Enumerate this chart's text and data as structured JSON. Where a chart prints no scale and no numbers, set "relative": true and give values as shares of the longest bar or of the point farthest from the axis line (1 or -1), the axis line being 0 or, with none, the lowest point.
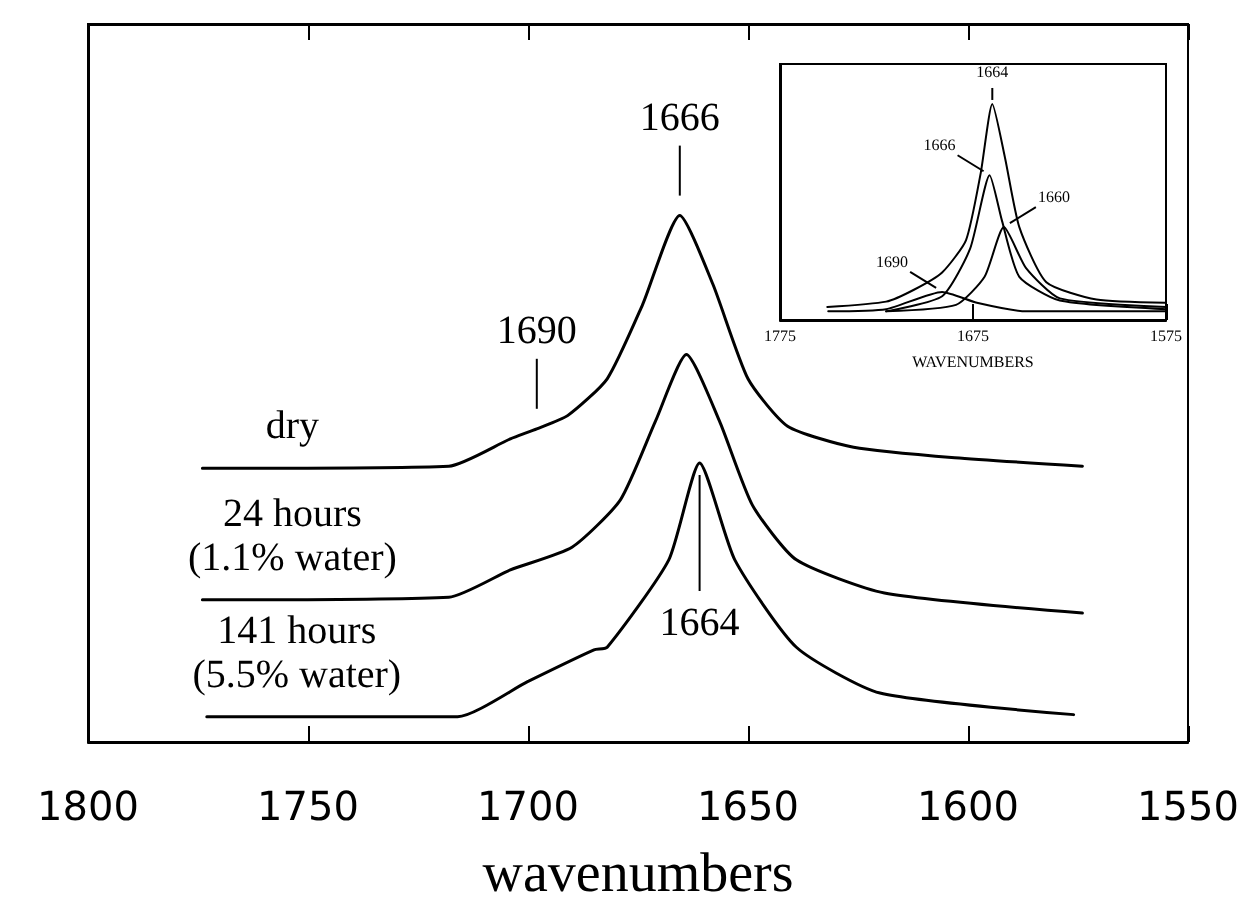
{
  "chart_data": [
    {
      "type": "line",
      "xlabel": "wavenumbers",
      "xlim": [
        1800,
        1550
      ],
      "xticks": [
        1800,
        1750,
        1700,
        1650,
        1600,
        1550
      ],
      "relative": true,
      "tick_labels": "x",
      "legend": false,
      "grid": false,
      "marker": "none",
      "line_style": "solid",
      "series": [
        {
          "name": "dry",
          "color": "#000000",
          "x": [
            1774,
            1718,
            1704,
            1698,
            1691,
            1682,
            1674,
            1665.5,
            1658,
            1650,
            1641,
            1626,
            1603,
            1574
          ],
          "values": [
            0.52,
            0.524,
            0.576,
            0.595,
            0.62,
            0.69,
            0.83,
            1.0,
            0.87,
            0.69,
            0.6,
            0.56,
            0.54,
            0.524
          ]
        },
        {
          "name": "24 hours (1.1% water)",
          "color": "#000000",
          "x": [
            1774,
            1718,
            1704,
            1690,
            1679,
            1671,
            1664,
            1656.5,
            1649,
            1639,
            1619,
            1574
          ],
          "values": [
            0.27,
            0.275,
            0.327,
            0.37,
            0.46,
            0.61,
            0.736,
            0.61,
            0.45,
            0.346,
            0.283,
            0.245
          ]
        },
        {
          "name": "141 hours (5.5% water)",
          "color": "#000000",
          "x": [
            1773,
            1716,
            1700,
            1685,
            1682,
            1668,
            1661,
            1653,
            1639,
            1620,
            1576
          ],
          "values": [
            0.048,
            0.048,
            0.115,
            0.175,
            0.18,
            0.346,
            0.53,
            0.346,
            0.18,
            0.093,
            0.052
          ]
        }
      ],
      "annotations": [
        {
          "text": "1690",
          "x": 1698,
          "y": 0.595
        },
        {
          "text": "1666",
          "x": 1665.5,
          "y": 1.0
        },
        {
          "text": "1664",
          "x": 1661,
          "y": 0.53
        }
      ]
    },
    {
      "type": "line",
      "xlabel": "WAVENUMBERS",
      "xlim": [
        1775,
        1575
      ],
      "xticks": [
        1775,
        1675,
        1575
      ],
      "relative": true,
      "tick_labels": "x",
      "legend": false,
      "grid": false,
      "marker": "none",
      "line_style": "solid",
      "series": [
        {
          "color": "#000000",
          "x": [
            1750.5,
            1720,
            1705.6,
            1691,
            1678.6,
            1671,
            1665,
            1658.4,
            1651,
            1637,
            1611,
            1575.4
          ],
          "values": [
            0.06,
            0.085,
            0.14,
            0.22,
            0.37,
            0.68,
            1.0,
            0.75,
            0.43,
            0.175,
            0.095,
            0.08
          ]
        },
        {
          "color": "#000000",
          "x": [
            1720,
            1691,
            1676.5,
            1666.4,
            1660,
            1651,
            1630,
            1575
          ],
          "values": [
            0.04,
            0.11,
            0.33,
            0.67,
            0.46,
            0.2,
            0.09,
            0.05
          ]
        },
        {
          "color": "#000000",
          "x": [
            1720,
            1683.8,
            1669,
            1659,
            1647.5,
            1630,
            1575
          ],
          "values": [
            0.04,
            0.07,
            0.2,
            0.43,
            0.24,
            0.1,
            0.06
          ]
        },
        {
          "color": "#000000",
          "x": [
            1750,
            1720,
            1691,
            1673,
            1647,
            1575
          ],
          "values": [
            0.04,
            0.05,
            0.13,
            0.08,
            0.04,
            0.04
          ]
        }
      ],
      "annotations": [
        {
          "text": "1664",
          "x": 1665,
          "y": 1.0
        },
        {
          "text": "1666",
          "x": 1666.4,
          "y": 0.67
        },
        {
          "text": "1660",
          "x": 1659,
          "y": 0.43
        },
        {
          "text": "1690",
          "x": 1691,
          "y": 0.13
        }
      ]
    }
  ]
}
